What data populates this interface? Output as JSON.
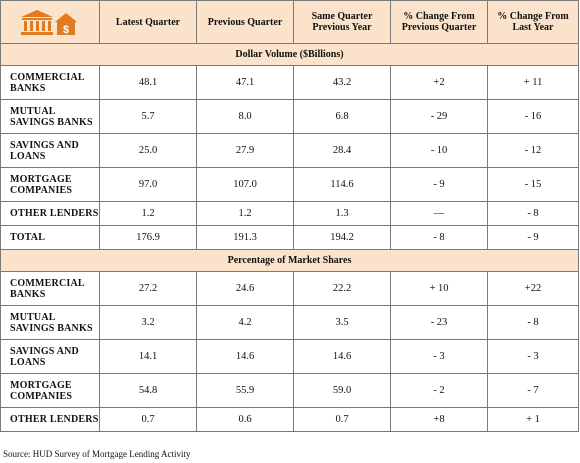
{
  "header": {
    "icon": "bank-with-house-dollar-icon",
    "accent_color": "#e07b1f",
    "columns": [
      "Latest Quarter",
      "Previous Quarter",
      "Same Quarter Previous Year",
      "% Change From Previous Quarter",
      "% Change From Last Year"
    ]
  },
  "sections": [
    {
      "title": "Dollar Volume ($Billions)",
      "rows": [
        {
          "label": "COMMERCIAL BANKS",
          "values": [
            "48.1",
            "47.1",
            "43.2",
            "+2",
            "+ 11"
          ]
        },
        {
          "label": "MUTUAL SAVINGS BANKS",
          "values": [
            "5.7",
            "8.0",
            "6.8",
            "- 29",
            "- 16"
          ]
        },
        {
          "label": "SAVINGS AND LOANS",
          "values": [
            "25.0",
            "27.9",
            "28.4",
            "- 10",
            "- 12"
          ]
        },
        {
          "label": "MORTGAGE COMPANIES",
          "values": [
            "97.0",
            "107.0",
            "114.6",
            "- 9",
            "- 15"
          ]
        },
        {
          "label": "OTHER LENDERS",
          "values": [
            "1.2",
            "1.2",
            "1.3",
            "—",
            "- 8"
          ]
        },
        {
          "label": "TOTAL",
          "values": [
            "176.9",
            "191.3",
            "194.2",
            "- 8",
            "- 9"
          ]
        }
      ]
    },
    {
      "title": "Percentage of Market Shares",
      "rows": [
        {
          "label": "COMMERCIAL BANKS",
          "values": [
            "27.2",
            "24.6",
            "22.2",
            "+ 10",
            "+22"
          ]
        },
        {
          "label": "MUTUAL SAVINGS BANKS",
          "values": [
            "3.2",
            "4.2",
            "3.5",
            "- 23",
            "- 8"
          ]
        },
        {
          "label": "SAVINGS AND LOANS",
          "values": [
            "14.1",
            "14.6",
            "14.6",
            "- 3",
            "- 3"
          ]
        },
        {
          "label": "MORTGAGE COMPANIES",
          "values": [
            "54.8",
            "55.9",
            "59.0",
            "- 2",
            "- 7"
          ]
        },
        {
          "label": "OTHER LENDERS",
          "values": [
            "0.7",
            "0.6",
            "0.7",
            "+8",
            "+ 1"
          ]
        }
      ]
    }
  ],
  "source": "Source: HUD Survey of Mortgage Lending Activity"
}
